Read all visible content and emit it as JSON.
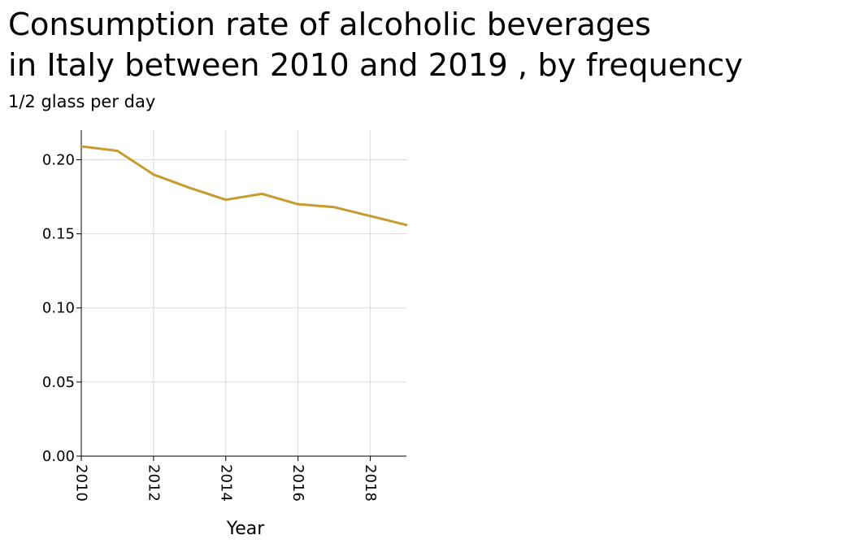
{
  "chart_data": {
    "type": "line",
    "title": "Consumption rate of alcoholic beverages\nin Italy between 2010 and 2019 , by frequency",
    "subtitle": "1/2 glass per day",
    "xlabel": "Year",
    "ylabel": "",
    "xlim": [
      2010,
      2019
    ],
    "ylim": [
      0,
      0.22
    ],
    "x_ticks": [
      2010,
      2012,
      2014,
      2016,
      2018
    ],
    "x_tick_labels": [
      "2010",
      "2012",
      "2014",
      "2016",
      "2018"
    ],
    "y_ticks": [
      0,
      0.05,
      0.1,
      0.15,
      0.2
    ],
    "y_tick_labels": [
      "0.00",
      "0.05",
      "0.10",
      "0.15",
      "0.20"
    ],
    "grid": true,
    "legend": "none",
    "series": [
      {
        "color": "#c89b2e",
        "x": [
          2010,
          2011,
          2012,
          2013,
          2014,
          2015,
          2016,
          2017,
          2018,
          2019
        ],
        "values": [
          0.209,
          0.206,
          0.19,
          0.181,
          0.173,
          0.177,
          0.17,
          0.168,
          0.162,
          0.156
        ]
      }
    ]
  }
}
